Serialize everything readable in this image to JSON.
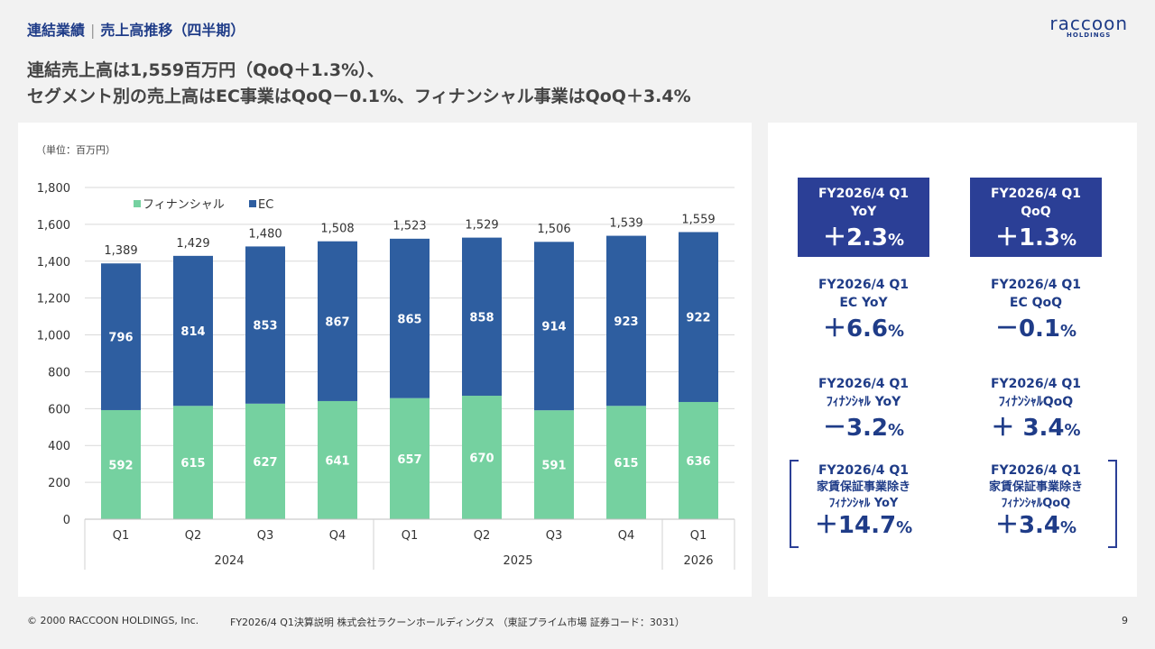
{
  "header": {
    "section": "連結業績",
    "title": "売上高推移（四半期）",
    "logo_word": "raccoon",
    "logo_sub": "HOLDINGS"
  },
  "headline": {
    "line1": "連結売上高は1,559百万円（QoQ＋1.3%）、",
    "line2": "セグメント別の売上高はEC事業はQoQ－0.1%、フィナンシャル事業はQoQ＋3.4%"
  },
  "chart_data": {
    "type": "bar",
    "stacked": true,
    "unit_label": "（単位：百万円）",
    "categories": [
      "Q1",
      "Q2",
      "Q3",
      "Q4",
      "Q1",
      "Q2",
      "Q3",
      "Q4",
      "Q1"
    ],
    "year_groups": [
      {
        "label": "2024",
        "start": 0,
        "end": 3
      },
      {
        "label": "2025",
        "start": 4,
        "end": 7
      },
      {
        "label": "2026",
        "start": 8,
        "end": 8
      }
    ],
    "series": [
      {
        "name": "フィナンシャル",
        "color": "#75d1a0",
        "values": [
          592,
          615,
          627,
          641,
          657,
          670,
          591,
          615,
          636
        ]
      },
      {
        "name": "EC",
        "color": "#2e5ea0",
        "values": [
          796,
          814,
          853,
          867,
          865,
          858,
          914,
          923,
          922
        ]
      }
    ],
    "totals": [
      "1,389",
      "1,429",
      "1,480",
      "1,508",
      "1,523",
      "1,529",
      "1,506",
      "1,539",
      "1,559"
    ],
    "totals_values": [
      1389,
      1429,
      1480,
      1508,
      1523,
      1529,
      1506,
      1539,
      1559
    ],
    "ylim": [
      0,
      1800
    ],
    "yticks": [
      0,
      200,
      400,
      600,
      800,
      1000,
      1200,
      1400,
      1600,
      1800
    ],
    "ytick_labels": [
      "0",
      "200",
      "400",
      "600",
      "800",
      "1,000",
      "1,200",
      "1,400",
      "1,600",
      "1,800"
    ],
    "legend_position": "top-left",
    "grid": true
  },
  "kpis": [
    {
      "l1": "FY2026/4 Q1",
      "l2": "YoY",
      "l3": "",
      "sign": "＋",
      "num": "2.3",
      "pct": "%",
      "filled": true
    },
    {
      "l1": "FY2026/4 Q1",
      "l2": "QoQ",
      "l3": "",
      "sign": "＋",
      "num": "1.3",
      "pct": "%",
      "filled": true
    },
    {
      "l1": "FY2026/4 Q1",
      "l2": "EC YoY",
      "l3": "",
      "sign": "＋",
      "num": "6.6",
      "pct": "%",
      "filled": false
    },
    {
      "l1": "FY2026/4 Q1",
      "l2": "EC QoQ",
      "l3": "",
      "sign": "－",
      "num": "0.1",
      "pct": "%",
      "filled": false
    },
    {
      "l1": "FY2026/4 Q1",
      "l2": "ﾌｨﾅﾝｼｬﾙ YoY",
      "l3": "",
      "sign": "－",
      "num": "3.2",
      "pct": "%",
      "filled": false
    },
    {
      "l1": "FY2026/4 Q1",
      "l2": "ﾌｨﾅﾝｼｬﾙQoQ",
      "l3": "",
      "sign": "＋ ",
      "num": "3.4",
      "pct": "%",
      "filled": false
    },
    {
      "l1": "FY2026/4 Q1",
      "l2": "家賃保証事業除き",
      "l3": "ﾌｨﾅﾝｼｬﾙ YoY",
      "sign": "＋",
      "num": "14.7",
      "pct": "%",
      "filled": false
    },
    {
      "l1": "FY2026/4 Q1",
      "l2": "家賃保証事業除き",
      "l3": "ﾌｨﾅﾝｼｬﾙQoQ",
      "sign": "＋",
      "num": "3.4",
      "pct": "%",
      "filled": false
    }
  ],
  "footer": {
    "copyright": "© 2000 RACCOON HOLDINGS, Inc.",
    "doc": "FY2026/4 Q1決算説明 株式会社ラクーンホールディングス （東証プライム市場 証券コード：3031）",
    "page": "9"
  }
}
